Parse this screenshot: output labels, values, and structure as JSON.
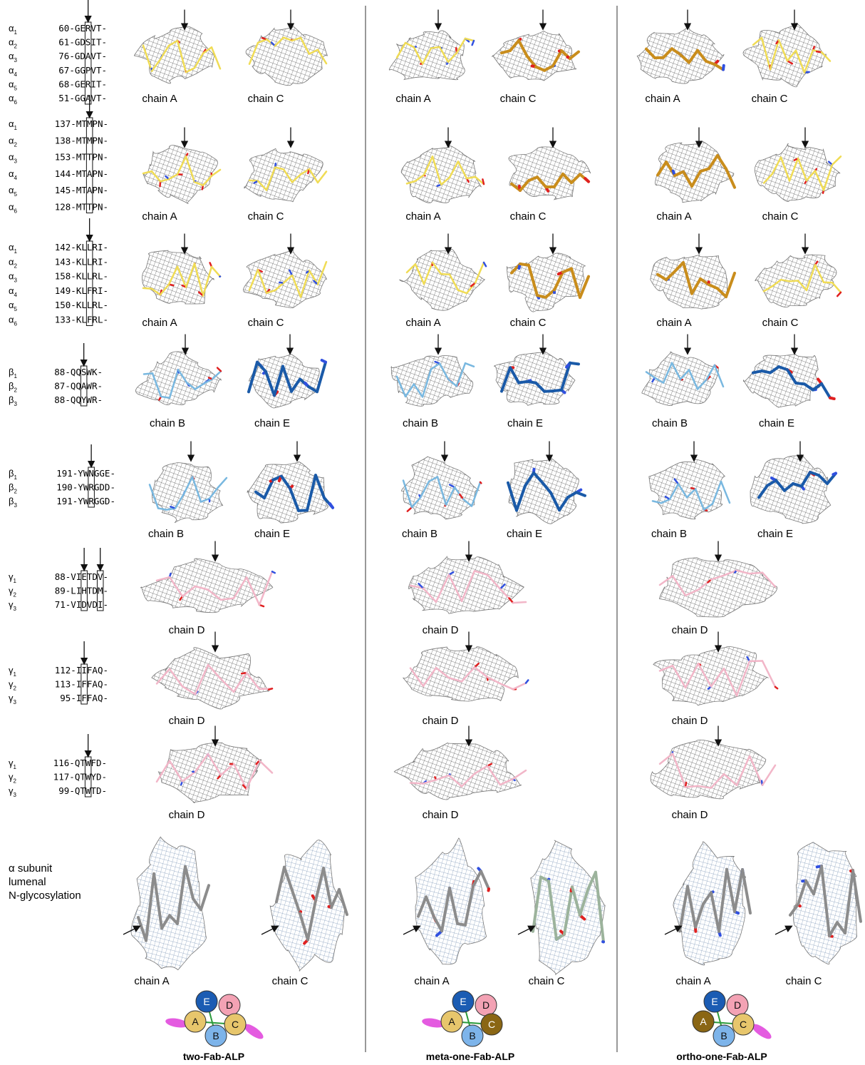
{
  "alignments": [
    {
      "lines": [
        {
          "g": "α",
          "s": "1",
          "seq": "60-GERVT-"
        },
        {
          "g": "α",
          "s": "2",
          "seq": "61-GDSIT-"
        },
        {
          "g": "α",
          "s": "3",
          "seq": "76-GDAVT-"
        },
        {
          "g": "α",
          "s": "4",
          "seq": "67-GGPVT-"
        },
        {
          "g": "α",
          "s": "5",
          "seq": "68-GERIT-"
        },
        {
          "g": "α",
          "s": "6",
          "seq": "51-GGAVT-"
        }
      ]
    },
    {
      "lines": [
        {
          "g": "α",
          "s": "1",
          "seq": "137-MTMPN-"
        },
        {
          "g": "α",
          "s": "2",
          "seq": "138-MTMPN-"
        },
        {
          "g": "α",
          "s": "3",
          "seq": "153-MTTPN-"
        },
        {
          "g": "α",
          "s": "4",
          "seq": "144-MTAPN-"
        },
        {
          "g": "α",
          "s": "5",
          "seq": "145-MTAPN-"
        },
        {
          "g": "α",
          "s": "6",
          "seq": "128-MTTPN-"
        }
      ]
    },
    {
      "lines": [
        {
          "g": "α",
          "s": "1",
          "seq": "142-KLLRI-"
        },
        {
          "g": "α",
          "s": "2",
          "seq": "143-KLLRI-"
        },
        {
          "g": "α",
          "s": "3",
          "seq": "158-KLLRL-"
        },
        {
          "g": "α",
          "s": "4",
          "seq": "149-KLFRI-"
        },
        {
          "g": "α",
          "s": "5",
          "seq": "150-KLLRL-"
        },
        {
          "g": "α",
          "s": "6",
          "seq": "133-KLFRL-"
        }
      ]
    },
    {
      "lines": [
        {
          "g": "β",
          "s": "1",
          "seq": "88-QQSWK-"
        },
        {
          "g": "β",
          "s": "2",
          "seq": "87-QQAWR-"
        },
        {
          "g": "β",
          "s": "3",
          "seq": "88-QQYWR-"
        }
      ]
    },
    {
      "lines": [
        {
          "g": "β",
          "s": "1",
          "seq": "191-YWNGGE-"
        },
        {
          "g": "β",
          "s": "2",
          "seq": "190-YWRGDD-"
        },
        {
          "g": "β",
          "s": "3",
          "seq": "191-YWRGGD-"
        }
      ]
    },
    {
      "lines": [
        {
          "g": "γ",
          "s": "1",
          "seq": "88-VIETDV-"
        },
        {
          "g": "γ",
          "s": "2",
          "seq": "89-LIHTDM-"
        },
        {
          "g": "γ",
          "s": "3",
          "seq": "71-VIDVDI-"
        }
      ]
    },
    {
      "lines": [
        {
          "g": "γ",
          "s": "1",
          "seq": "112-IIFAQ-"
        },
        {
          "g": "γ",
          "s": "2",
          "seq": "113-IFFAQ-"
        },
        {
          "g": "γ",
          "s": "3",
          "seq": "95-IFFAQ-"
        }
      ]
    },
    {
      "lines": [
        {
          "g": "γ",
          "s": "1",
          "seq": "116-QTWFD-"
        },
        {
          "g": "γ",
          "s": "2",
          "seq": "117-QTWYD-"
        },
        {
          "g": "γ",
          "s": "3",
          "seq": "99-QTWTD-"
        }
      ]
    }
  ],
  "glycosylation_label": [
    "α subunit",
    "lumenal",
    "N-glycosylation"
  ],
  "columns": [
    {
      "title": "two-Fab-ALP",
      "panels": [
        [
          "chain A",
          "chain C"
        ],
        [
          "chain A",
          "chain C"
        ],
        [
          "chain A",
          "chain C"
        ],
        [
          "chain B",
          "chain E"
        ],
        [
          "chain B",
          "chain E"
        ],
        [
          "chain D"
        ],
        [
          "chain D"
        ],
        [
          "chain D"
        ],
        [
          "chain A",
          "chain C"
        ]
      ],
      "schematic": [
        "E",
        "D",
        "A",
        "B",
        "C"
      ]
    },
    {
      "title": "meta-one-Fab-ALP",
      "panels": [
        [
          "chain A",
          "chain C"
        ],
        [
          "chain A",
          "chain C"
        ],
        [
          "chain A",
          "chain C"
        ],
        [
          "chain B",
          "chain E"
        ],
        [
          "chain B",
          "chain E"
        ],
        [
          "chain D"
        ],
        [
          "chain D"
        ],
        [
          "chain D"
        ],
        [
          "chain A",
          "chain C"
        ]
      ],
      "schematic": [
        "E",
        "D",
        "A",
        "B",
        "C"
      ]
    },
    {
      "title": "ortho-one-Fab-ALP",
      "panels": [
        [
          "chain A",
          "chain C"
        ],
        [
          "chain A",
          "chain C"
        ],
        [
          "chain A",
          "chain C"
        ],
        [
          "chain B",
          "chain E"
        ],
        [
          "chain B",
          "chain E"
        ],
        [
          "chain D"
        ],
        [
          "chain D"
        ],
        [
          "chain D"
        ],
        [
          "chain A",
          "chain C"
        ]
      ],
      "schematic": [
        "E",
        "D",
        "A",
        "B",
        "C"
      ]
    }
  ]
}
